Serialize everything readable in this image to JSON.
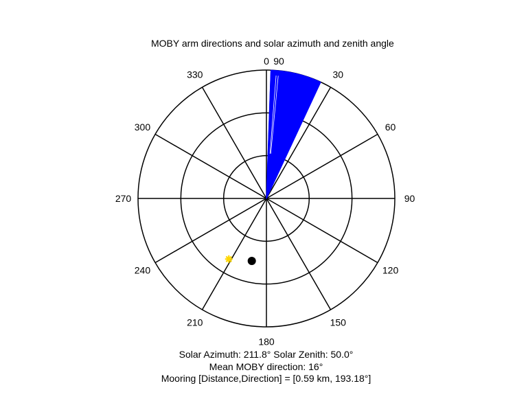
{
  "figure": {
    "title": "MOBY arm directions and solar azimuth and zenith angle",
    "footer_line1": "Solar Azimuth: 211.8°   Solar Zenith: 50.0°",
    "footer_line2": "Mean MOBY direction: 16°",
    "footer_line3": "Mooring [Distance,Direction] = [0.59 km, 193.18°]"
  },
  "colors": {
    "grid": "#000000",
    "moby_arms": "#0000ff",
    "sun_marker": "#ffd700",
    "mooring_marker": "#000000"
  },
  "chart_data": {
    "type": "polar",
    "title": "MOBY arm directions and solar azimuth and zenith angle",
    "angle_convention": "compass degrees, 0 at top, clockwise",
    "angular_ticks": [
      0,
      30,
      60,
      90,
      120,
      150,
      180,
      210,
      240,
      270,
      300,
      330
    ],
    "radial_tick_labels": [
      {
        "value": 90,
        "label": "90"
      }
    ],
    "radial_max": 90,
    "radial_rings": [
      30,
      60,
      90
    ],
    "series": [
      {
        "name": "",
        "kind": "direction-rays",
        "radius": 90,
        "angles_deg": [
          2,
          3,
          4,
          5,
          6,
          7,
          8,
          9,
          10,
          11,
          12,
          13,
          14,
          15,
          16,
          17,
          18,
          19,
          20,
          21,
          22,
          23,
          24,
          25
        ],
        "gaps_deg": [
          4.5,
          5.5
        ]
      },
      {
        "name": "",
        "kind": "point",
        "marker": "asterisk",
        "azimuth_deg": 211.8,
        "radius": 50.0
      },
      {
        "name": "",
        "kind": "point",
        "marker": "filled-circle",
        "azimuth_deg": 193.18,
        "radius": 45
      }
    ],
    "annotations": [
      "Solar Azimuth: 211.8°   Solar Zenith: 50.0°",
      "Mean MOBY direction: 16°",
      "Mooring [Distance,Direction] = [0.59 km, 193.18°]"
    ]
  }
}
